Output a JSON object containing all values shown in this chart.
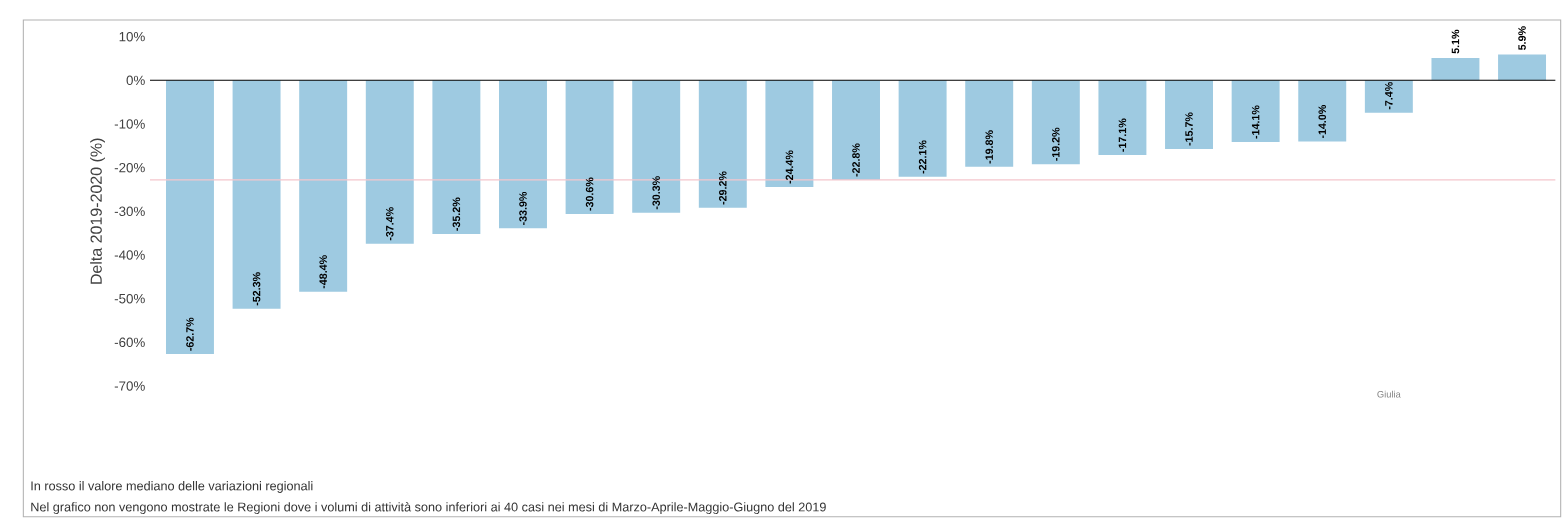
{
  "chart_data": {
    "type": "bar",
    "ylabel": "Delta 2019-2020 (%)",
    "categories": [
      null,
      null,
      null,
      null,
      null,
      null,
      null,
      null,
      null,
      null,
      null,
      null,
      null,
      null,
      null,
      null,
      null,
      null,
      "Giulia",
      null,
      null
    ],
    "values": [
      -62.7,
      -52.3,
      -48.4,
      -37.4,
      -35.2,
      -33.9,
      -30.6,
      -30.3,
      -29.2,
      -24.4,
      -22.8,
      -22.1,
      -19.8,
      -19.2,
      -17.1,
      -15.7,
      -14.1,
      -14.0,
      -7.4,
      5.1,
      5.9
    ],
    "value_labels": [
      "-62.7%",
      "-52.3%",
      "-48.4%",
      "-37.4%",
      "-35.2%",
      "-33.9%",
      "-30.6%",
      "-30.3%",
      "-29.2%",
      "-24.4%",
      "-22.8%",
      "-22.1%",
      "-19.8%",
      "-19.2%",
      "-17.1%",
      "-15.7%",
      "-14.1%",
      "-14.0%",
      "-7.4%",
      "5.1%",
      "5.9%"
    ],
    "color": "#9ecae1",
    "ylim": [
      -70,
      10
    ],
    "yticks": [
      {
        "value": 10,
        "label": "10%"
      },
      {
        "value": 0,
        "label": "0%"
      },
      {
        "value": -10,
        "label": "-10%"
      },
      {
        "value": -20,
        "label": "-20%"
      },
      {
        "value": -30,
        "label": "-30%"
      },
      {
        "value": -40,
        "label": "-40%"
      },
      {
        "value": -50,
        "label": "-50%"
      },
      {
        "value": -60,
        "label": "-60%"
      },
      {
        "value": -70,
        "label": "-70%"
      }
    ],
    "ref_lines": [
      {
        "axis": "y",
        "value": -22.8,
        "color": "#f4c6cc"
      }
    ],
    "annotations": [
      "In rosso il valore mediano delle variazioni regionali",
      "Nel grafico non vengono mostrate le Regioni dove i volumi di attività sono inferiori ai 40 casi nei mesi di Marzo-Aprile-Maggio-Giugno del 2019"
    ]
  }
}
